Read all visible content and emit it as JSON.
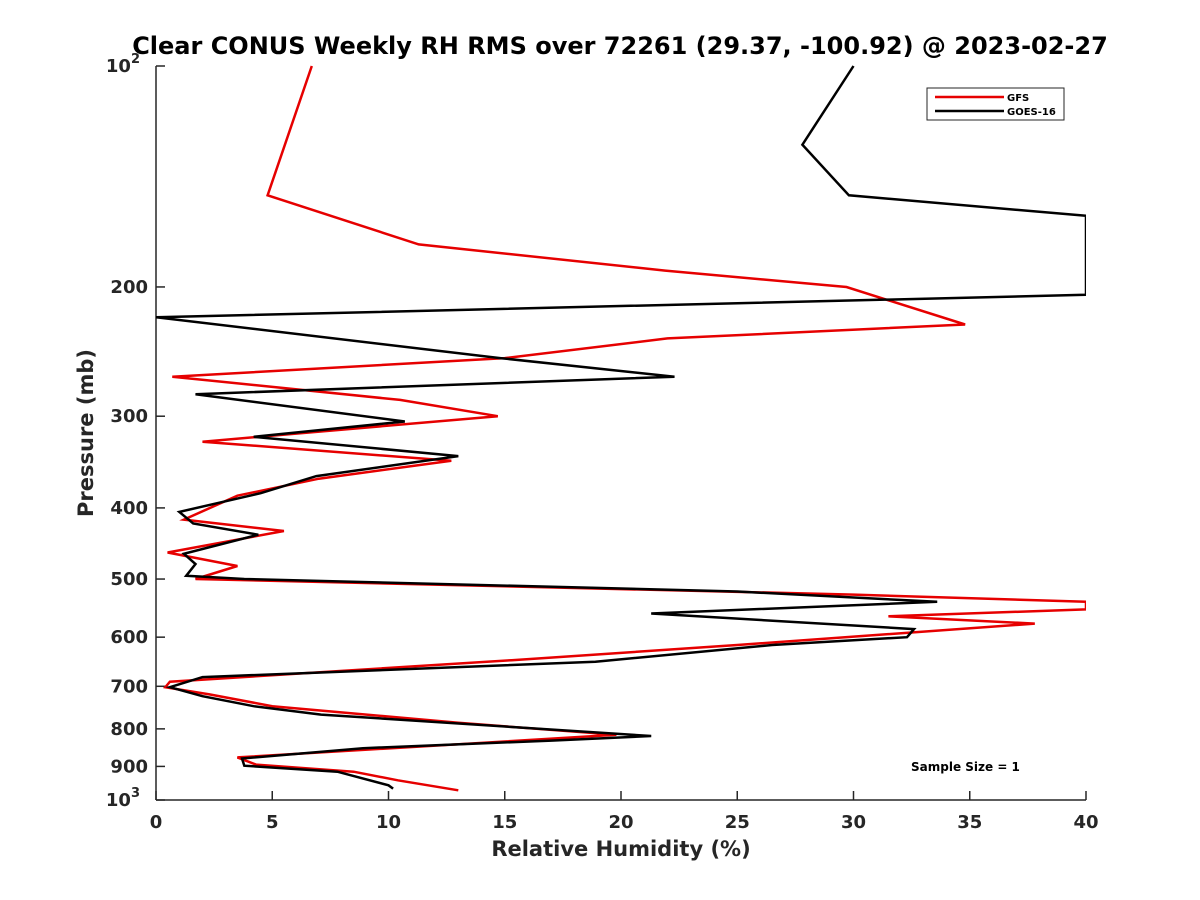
{
  "chart_data": {
    "type": "line",
    "title": "Clear CONUS Weekly RH RMS over 72261 (29.37, -100.92) @ 2023-02-27",
    "xlabel": "Relative Humidity (%)",
    "ylabel": "Pressure (mb)",
    "xlim": [
      0,
      40
    ],
    "ylim": [
      100,
      1000
    ],
    "y_scale": "log",
    "y_reversed": true,
    "grid": false,
    "x_ticks": [
      {
        "value": 0,
        "label": "0"
      },
      {
        "value": 5,
        "label": "5"
      },
      {
        "value": 10,
        "label": "10"
      },
      {
        "value": 15,
        "label": "15"
      },
      {
        "value": 20,
        "label": "20"
      },
      {
        "value": 25,
        "label": "25"
      },
      {
        "value": 30,
        "label": "30"
      },
      {
        "value": 35,
        "label": "35"
      },
      {
        "value": 40,
        "label": "40"
      }
    ],
    "y_ticks": [
      {
        "value": 100,
        "label": "10",
        "sup": "2"
      },
      {
        "value": 200,
        "label": "200",
        "sup": ""
      },
      {
        "value": 300,
        "label": "300",
        "sup": ""
      },
      {
        "value": 400,
        "label": "400",
        "sup": ""
      },
      {
        "value": 500,
        "label": "500",
        "sup": ""
      },
      {
        "value": 600,
        "label": "600",
        "sup": ""
      },
      {
        "value": 700,
        "label": "700",
        "sup": ""
      },
      {
        "value": 800,
        "label": "800",
        "sup": ""
      },
      {
        "value": 900,
        "label": "900",
        "sup": ""
      },
      {
        "value": 1000,
        "label": "10",
        "sup": "3"
      }
    ],
    "legend_position": "top-right",
    "annotation": "Sample Size = 1",
    "series": [
      {
        "name": "GFS",
        "color": "#e60000",
        "points": [
          {
            "x": 6.7,
            "p": 100
          },
          {
            "x": 4.8,
            "p": 150
          },
          {
            "x": 11.3,
            "p": 175
          },
          {
            "x": 21.9,
            "p": 190
          },
          {
            "x": 29.7,
            "p": 200
          },
          {
            "x": 34.8,
            "p": 225
          },
          {
            "x": 22.0,
            "p": 235
          },
          {
            "x": 15.0,
            "p": 250
          },
          {
            "x": 0.7,
            "p": 265
          },
          {
            "x": 10.5,
            "p": 285
          },
          {
            "x": 14.7,
            "p": 300
          },
          {
            "x": 2.0,
            "p": 325
          },
          {
            "x": 12.7,
            "p": 345
          },
          {
            "x": 7.0,
            "p": 365
          },
          {
            "x": 3.5,
            "p": 385
          },
          {
            "x": 1.2,
            "p": 415
          },
          {
            "x": 5.5,
            "p": 430
          },
          {
            "x": 0.5,
            "p": 460
          },
          {
            "x": 3.5,
            "p": 480
          },
          {
            "x": 1.7,
            "p": 500
          },
          {
            "x": 30.0,
            "p": 525
          },
          {
            "x": 40.0,
            "p": 537
          },
          {
            "x": 40.0,
            "p": 550
          },
          {
            "x": 31.5,
            "p": 562
          },
          {
            "x": 37.8,
            "p": 575
          },
          {
            "x": 25.0,
            "p": 615
          },
          {
            "x": 15.3,
            "p": 645
          },
          {
            "x": 0.6,
            "p": 690
          },
          {
            "x": 0.4,
            "p": 702
          },
          {
            "x": 2.3,
            "p": 718
          },
          {
            "x": 5.0,
            "p": 745
          },
          {
            "x": 13.0,
            "p": 785
          },
          {
            "x": 19.8,
            "p": 815
          },
          {
            "x": 3.5,
            "p": 875
          },
          {
            "x": 4.3,
            "p": 895
          },
          {
            "x": 8.5,
            "p": 915
          },
          {
            "x": 10.4,
            "p": 940
          },
          {
            "x": 13.0,
            "p": 970
          }
        ]
      },
      {
        "name": "GOES-16",
        "color": "#000000",
        "points": [
          {
            "x": 30.0,
            "p": 100
          },
          {
            "x": 27.8,
            "p": 128
          },
          {
            "x": 29.8,
            "p": 150
          },
          {
            "x": 40.0,
            "p": 160
          },
          {
            "x": 40.0,
            "p": 205
          },
          {
            "x": 0.0,
            "p": 220
          },
          {
            "x": 14.8,
            "p": 250
          },
          {
            "x": 22.3,
            "p": 265
          },
          {
            "x": 1.7,
            "p": 280
          },
          {
            "x": 10.7,
            "p": 305
          },
          {
            "x": 4.2,
            "p": 320
          },
          {
            "x": 13.0,
            "p": 340
          },
          {
            "x": 6.9,
            "p": 362
          },
          {
            "x": 4.5,
            "p": 382
          },
          {
            "x": 1.0,
            "p": 405
          },
          {
            "x": 1.6,
            "p": 420
          },
          {
            "x": 4.4,
            "p": 435
          },
          {
            "x": 1.2,
            "p": 462
          },
          {
            "x": 1.7,
            "p": 477
          },
          {
            "x": 1.3,
            "p": 495
          },
          {
            "x": 3.8,
            "p": 500
          },
          {
            "x": 25.0,
            "p": 520
          },
          {
            "x": 33.6,
            "p": 537
          },
          {
            "x": 21.3,
            "p": 557
          },
          {
            "x": 32.6,
            "p": 585
          },
          {
            "x": 32.3,
            "p": 600
          },
          {
            "x": 26.5,
            "p": 615
          },
          {
            "x": 18.9,
            "p": 648
          },
          {
            "x": 2.0,
            "p": 680
          },
          {
            "x": 0.6,
            "p": 702
          },
          {
            "x": 2.0,
            "p": 722
          },
          {
            "x": 4.2,
            "p": 745
          },
          {
            "x": 7.1,
            "p": 765
          },
          {
            "x": 21.3,
            "p": 818
          },
          {
            "x": 17.0,
            "p": 830
          },
          {
            "x": 8.9,
            "p": 850
          },
          {
            "x": 3.7,
            "p": 878
          },
          {
            "x": 3.8,
            "p": 898
          },
          {
            "x": 7.8,
            "p": 915
          },
          {
            "x": 10.0,
            "p": 955
          },
          {
            "x": 10.2,
            "p": 965
          }
        ]
      }
    ]
  }
}
